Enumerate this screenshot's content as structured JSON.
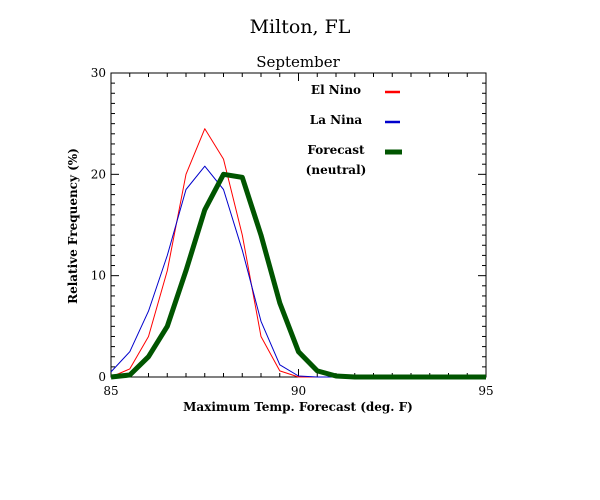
{
  "chart_data": {
    "type": "line",
    "title": "Milton, FL",
    "subtitle": "September",
    "xlabel": "Maximum Temp. Forecast (deg. F)",
    "ylabel": "Relative Frequency (%)",
    "xlim": [
      85,
      95
    ],
    "ylim": [
      0,
      30
    ],
    "x_ticks": [
      85,
      90,
      95
    ],
    "y_ticks": [
      0,
      10,
      20,
      30
    ],
    "grid": false,
    "legend_position": "top-right",
    "legend_note": "(neutral)",
    "series": [
      {
        "name": "El Nino",
        "color": "#ff0000",
        "width": "thin",
        "x": [
          85,
          85.5,
          86,
          86.5,
          87,
          87.5,
          88,
          88.5,
          89,
          89.5,
          90,
          90.5,
          91,
          91.5,
          92,
          92.5,
          93,
          93.5,
          94,
          94.5,
          95
        ],
        "y": [
          0,
          0.8,
          4,
          10.5,
          20,
          24.5,
          21.5,
          14,
          4,
          0.6,
          0,
          0,
          0,
          0,
          0,
          0,
          0,
          0,
          0,
          0,
          0
        ]
      },
      {
        "name": "La Nina",
        "color": "#0000cc",
        "width": "thin",
        "x": [
          85,
          85.5,
          86,
          86.5,
          87,
          87.5,
          88,
          88.5,
          89,
          89.5,
          90,
          90.5,
          91,
          91.5,
          92,
          92.5,
          93,
          93.5,
          94,
          94.5,
          95
        ],
        "y": [
          0.5,
          2.5,
          6.5,
          12,
          18.5,
          20.8,
          18.5,
          12.5,
          5.5,
          1.2,
          0.1,
          0,
          0,
          0,
          0,
          0,
          0,
          0,
          0,
          0,
          0
        ]
      },
      {
        "name": "Forecast",
        "color": "#005500",
        "width": "thick",
        "x": [
          85,
          85.5,
          86,
          86.5,
          87,
          87.5,
          88,
          88.5,
          89,
          89.5,
          90,
          90.5,
          91,
          91.5,
          92,
          92.5,
          93,
          93.5,
          94,
          94.5,
          95
        ],
        "y": [
          0,
          0.2,
          2,
          5,
          10.5,
          16.5,
          20,
          19.7,
          14,
          7.3,
          2.5,
          0.6,
          0.1,
          0,
          0,
          0,
          0,
          0,
          0,
          0,
          0
        ]
      }
    ]
  }
}
